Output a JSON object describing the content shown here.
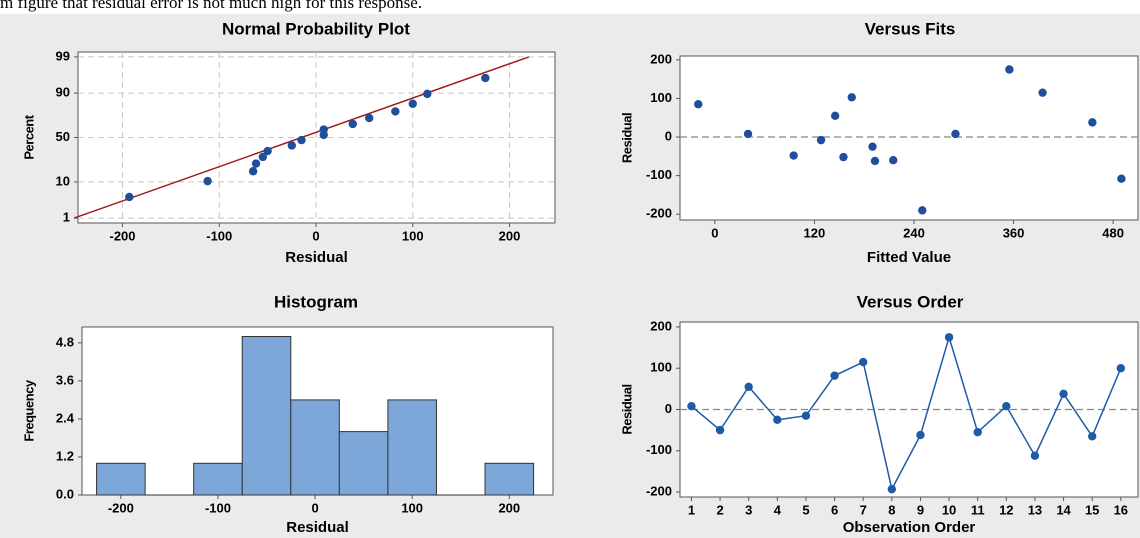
{
  "caption": "m figure that residual error is not much high for this response.",
  "chart_data": [
    {
      "type": "probability",
      "title": "Normal Probability Plot",
      "xlabel": "Residual",
      "ylabel": "Percent",
      "xlim": [
        -246,
        247
      ],
      "ylim": [
        0.68,
        99.32
      ],
      "xticks": [
        -200,
        -100,
        0,
        100,
        200
      ],
      "yticks": [
        1,
        10,
        50,
        90,
        99
      ],
      "grid": true,
      "series": [
        {
          "color": "#1f4e9a",
          "x": [
            -193,
            -112,
            -65,
            -62,
            -55,
            -50,
            -25,
            -15,
            8,
            8,
            38,
            55,
            82,
            100,
            115,
            175
          ],
          "values": [
            4.3,
            10.4,
            16.5,
            22.6,
            28.7,
            34.8,
            40.9,
            47.0,
            53.0,
            59.1,
            65.2,
            71.3,
            77.4,
            83.5,
            89.6,
            95.7
          ]
        },
        {
          "color": "#a01c1c",
          "x": [
            -250,
            220
          ],
          "values": [
            1,
            99
          ]
        }
      ]
    },
    {
      "type": "scatter",
      "title": "Versus Fits",
      "xlabel": "Fitted Value",
      "ylabel": "Residual",
      "xlim": [
        -42,
        510
      ],
      "ylim": [
        -215,
        210
      ],
      "xticks": [
        0,
        120,
        240,
        360,
        480
      ],
      "yticks": [
        -200,
        -100,
        0,
        100,
        200
      ],
      "reference_line": 0,
      "series": [
        {
          "color": "#1f4e9a",
          "x": [
            -20,
            40,
            95,
            128,
            145,
            155,
            165,
            190,
            193,
            215,
            250,
            290,
            355,
            395,
            455,
            490
          ],
          "values": [
            85,
            8,
            -48,
            -8,
            55,
            -52,
            103,
            -25,
            -62,
            -60,
            -190,
            8,
            175,
            115,
            38,
            -108
          ]
        }
      ]
    },
    {
      "type": "histogram",
      "title": "Histogram",
      "xlabel": "Residual",
      "ylabel": "Frequency",
      "xlim": [
        -240,
        245
      ],
      "ylim": [
        0,
        5.3
      ],
      "xticks": [
        -200,
        -100,
        0,
        100,
        200
      ],
      "yticks": [
        {
          "value": 0,
          "label": "0.0"
        },
        1.2,
        2.4,
        3.6,
        4.8
      ],
      "color": "#7da7d9",
      "bins": [
        -225,
        -175,
        -125,
        -75,
        -25,
        25,
        75,
        125,
        175,
        225
      ],
      "values": [
        1,
        0,
        1,
        5,
        3,
        2,
        3,
        0,
        1
      ]
    },
    {
      "type": "line",
      "title": "Versus Order",
      "xlabel": "Observation Order",
      "ylabel": "Residual",
      "xlim": [
        0.6,
        16.6
      ],
      "ylim": [
        -212,
        212
      ],
      "xticks": [
        1,
        2,
        3,
        4,
        5,
        6,
        7,
        8,
        9,
        10,
        11,
        12,
        13,
        14,
        15,
        16
      ],
      "yticks": [
        -200,
        -100,
        0,
        100,
        200
      ],
      "reference_line": 0,
      "series": [
        {
          "color": "#1f5aa6",
          "x": [
            1,
            2,
            3,
            4,
            5,
            6,
            7,
            8,
            9,
            10,
            11,
            12,
            13,
            14,
            15,
            16
          ],
          "values": [
            8,
            -50,
            55,
            -25,
            -15,
            82,
            115,
            -193,
            -62,
            175,
            -55,
            8,
            -112,
            38,
            -65,
            100
          ]
        }
      ]
    }
  ]
}
